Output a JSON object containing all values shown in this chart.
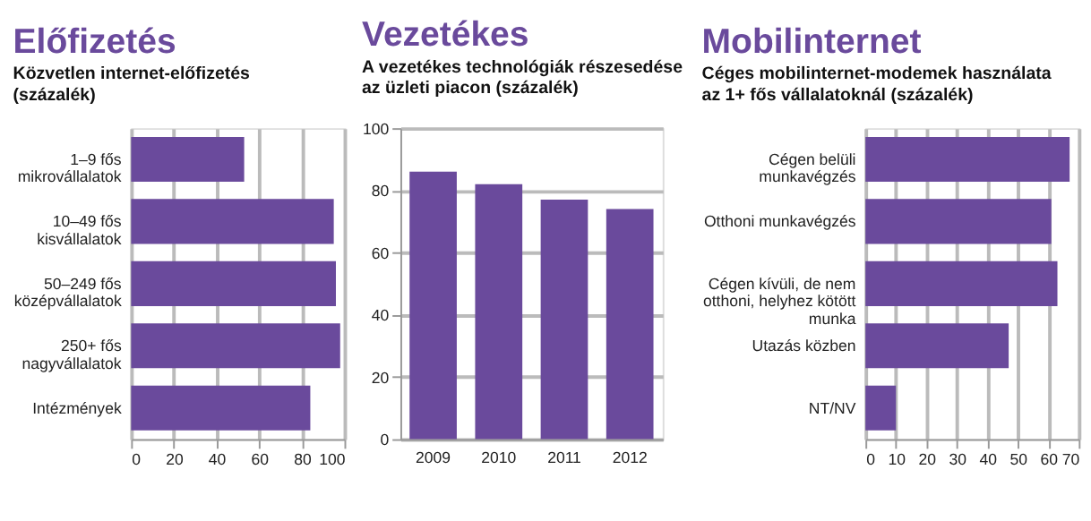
{
  "chart_data": [
    {
      "type": "bar",
      "orientation": "horizontal",
      "title": "Előfizetés",
      "subtitle": "Közvetlen internet-előfizetés\n(százalék)",
      "categories": [
        "1–9 fős\nmikrovállalatok",
        "10–49 fős\nkisvállalatok",
        "50–249 fős\nközépvállalatok",
        "250+ fős\nnagyvállalatok",
        "Intézmények"
      ],
      "values": [
        53,
        95,
        96,
        98,
        84
      ],
      "color": "#6a4a9c",
      "xlim": [
        0,
        100
      ],
      "xticks": [
        0,
        20,
        40,
        60,
        80,
        100
      ],
      "grid": "x"
    },
    {
      "type": "bar",
      "title": "Vezetékes",
      "subtitle": "A vezetékes technológiák részesedése\naz üzleti piacon (százalék)",
      "categories": [
        "2009",
        "2010",
        "2011",
        "2012"
      ],
      "values": [
        86,
        82,
        77,
        74
      ],
      "color": "#6a4a9c",
      "ylim": [
        0,
        100
      ],
      "yticks": [
        0,
        20,
        40,
        60,
        80,
        100
      ],
      "grid": "y"
    },
    {
      "type": "bar",
      "orientation": "horizontal",
      "title": "Mobilinternet",
      "subtitle": "Céges mobilinternet-modemek használata\naz 1+ fős vállalatoknál (százalék)",
      "categories": [
        "Cégen belüli\nmunkavégzés",
        "Otthoni munkavégzés",
        "Cégen kívüli, de nem\notthoni, helyhez kötött\nmunka",
        "Utazás közben",
        "NT/NV"
      ],
      "values": [
        67,
        61,
        63,
        47,
        10
      ],
      "color": "#6a4a9c",
      "xlim": [
        0,
        70
      ],
      "xticks": [
        0,
        10,
        20,
        30,
        40,
        50,
        60,
        70
      ],
      "grid": "x"
    }
  ]
}
